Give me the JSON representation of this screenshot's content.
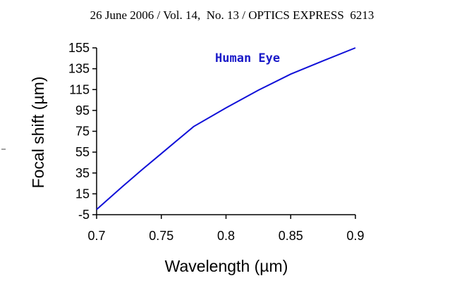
{
  "header": "26 June 2006 / Vol. 14,  No. 13 / OPTICS EXPRESS  6213",
  "chart_data": {
    "type": "line",
    "xlabel": "Wavelength (µm)",
    "ylabel": "Focal shift (µm)",
    "xlim": [
      0.7,
      0.9
    ],
    "ylim": [
      -5,
      155
    ],
    "xticks": [
      "0.7",
      "0.75",
      "0.8",
      "0.85",
      "0.9"
    ],
    "yticks": [
      "-5",
      "15",
      "35",
      "55",
      "75",
      "95",
      "115",
      "135",
      "155"
    ],
    "grid": false,
    "annotation": "Human Eye",
    "colors": {
      "line": "#1010d8",
      "annotation": "#1a1ac8"
    },
    "series": [
      {
        "x": [
          0.7,
          0.71,
          0.72,
          0.735,
          0.75,
          0.775,
          0.8,
          0.825,
          0.85,
          0.875,
          0.9
        ],
        "y": [
          0,
          11,
          22,
          38,
          53.6,
          79.5,
          97.5,
          114.4,
          129.8,
          142.6,
          155
        ]
      }
    ]
  }
}
